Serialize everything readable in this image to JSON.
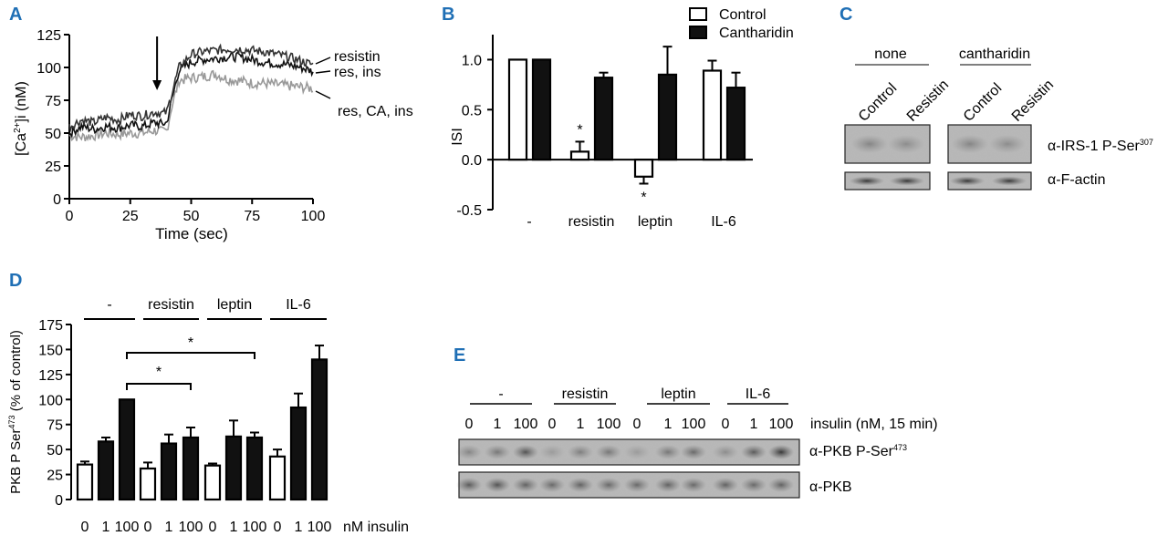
{
  "panels": {
    "A": {
      "letter": "A",
      "chart_data": {
        "type": "line",
        "xlabel": "Time (sec)",
        "ylabel": "[Ca2+]i (nM)",
        "xlim": [
          0,
          100
        ],
        "ylim": [
          0,
          125
        ],
        "xticks": [
          "0",
          "25",
          "50",
          "75",
          "100"
        ],
        "yticks": [
          "0",
          "25",
          "50",
          "75",
          "100",
          "125"
        ],
        "series": [
          {
            "name": "resistin",
            "color": "#333333",
            "x": [
              0,
              5,
              10,
              15,
              20,
              25,
              30,
              35,
              38,
              40,
              42,
              45,
              50,
              55,
              60,
              65,
              70,
              75,
              80,
              85,
              90,
              95,
              100
            ],
            "y": [
              55,
              60,
              58,
              62,
              60,
              64,
              63,
              66,
              65,
              66,
              80,
              100,
              110,
              112,
              113,
              114,
              114,
              113,
              112,
              110,
              108,
              105,
              102
            ]
          },
          {
            "name": "res, ins",
            "color": "#111111",
            "x": [
              0,
              5,
              10,
              15,
              20,
              25,
              30,
              35,
              38,
              40,
              42,
              45,
              50,
              55,
              60,
              65,
              70,
              75,
              80,
              85,
              90,
              95,
              100
            ],
            "y": [
              50,
              55,
              53,
              55,
              54,
              56,
              55,
              58,
              57,
              58,
              75,
              98,
              104,
              106,
              107,
              108,
              108,
              106,
              104,
              103,
              102,
              100,
              97
            ]
          },
          {
            "name": "res, CA, ins",
            "color": "#999999",
            "x": [
              0,
              5,
              10,
              15,
              20,
              25,
              30,
              35,
              38,
              40,
              42,
              45,
              50,
              55,
              60,
              65,
              70,
              75,
              80,
              85,
              90,
              95,
              100
            ],
            "y": [
              48,
              47,
              48,
              50,
              49,
              50,
              50,
              52,
              51,
              52,
              70,
              90,
              92,
              93,
              95,
              91,
              90,
              88,
              88,
              87,
              86,
              85,
              84
            ]
          }
        ],
        "annotation": "stimulus arrow",
        "arrow_x": 36
      },
      "labels": {
        "ylabel_base": "[Ca",
        "ylabel_sup": "2+",
        "ylabel_rest": "]i (nM)"
      }
    },
    "B": {
      "letter": "B",
      "chart_data": {
        "type": "bar",
        "ylabel": "ISI",
        "ylim": [
          -0.5,
          1.25
        ],
        "yticks": [
          "-0.5",
          "0.0",
          "0.5",
          "1.0"
        ],
        "categories": [
          "-",
          "resistin",
          "leptin",
          "IL-6"
        ],
        "series": [
          {
            "name": "Control",
            "fill": "#ffffff",
            "values": [
              1.0,
              0.08,
              -0.17,
              0.89
            ],
            "errors": [
              0,
              0.1,
              0.07,
              0.1
            ]
          },
          {
            "name": "Cantharidin",
            "fill": "#111111",
            "values": [
              1.0,
              0.82,
              0.85,
              0.72
            ],
            "errors": [
              0,
              0.05,
              0.28,
              0.15
            ]
          }
        ],
        "significance": [
          "",
          "*",
          "*",
          ""
        ],
        "legend_position": "top-right"
      }
    },
    "C": {
      "letter": "C",
      "groups": [
        "none",
        "cantharidin"
      ],
      "lanes": [
        "Control",
        "Resistin",
        "Control",
        "Resistin"
      ],
      "rows": [
        {
          "label_prefix": "α-IRS-1 P-Ser",
          "label_sup": "307"
        },
        {
          "label_prefix": "α-F-actin",
          "label_sup": ""
        }
      ]
    },
    "D": {
      "letter": "D",
      "groups": [
        "-",
        "resistin",
        "leptin",
        "IL-6"
      ],
      "chart_data": {
        "type": "bar",
        "ylabel": "PKB P Ser473 (% of control)",
        "ylim": [
          0,
          175
        ],
        "yticks": [
          "0",
          "25",
          "50",
          "75",
          "100",
          "125",
          "150",
          "175"
        ],
        "x_tick_labels": [
          "0",
          "1",
          "100",
          "0",
          "1",
          "100",
          "0",
          "1",
          "100",
          "0",
          "1",
          "100"
        ],
        "xlabel": "nM insulin",
        "bars": [
          {
            "group": "-",
            "insulin": "0",
            "value": 35,
            "error": 3,
            "fill": "#ffffff"
          },
          {
            "group": "-",
            "insulin": "1",
            "value": 58,
            "error": 4,
            "fill": "#111111"
          },
          {
            "group": "-",
            "insulin": "100",
            "value": 100,
            "error": 0,
            "fill": "#111111"
          },
          {
            "group": "resistin",
            "insulin": "0",
            "value": 31,
            "error": 6,
            "fill": "#ffffff"
          },
          {
            "group": "resistin",
            "insulin": "1",
            "value": 56,
            "error": 9,
            "fill": "#111111"
          },
          {
            "group": "resistin",
            "insulin": "100",
            "value": 62,
            "error": 10,
            "fill": "#111111"
          },
          {
            "group": "leptin",
            "insulin": "0",
            "value": 34,
            "error": 2,
            "fill": "#ffffff"
          },
          {
            "group": "leptin",
            "insulin": "1",
            "value": 63,
            "error": 16,
            "fill": "#111111"
          },
          {
            "group": "leptin",
            "insulin": "100",
            "value": 62,
            "error": 5,
            "fill": "#111111"
          },
          {
            "group": "IL-6",
            "insulin": "0",
            "value": 43,
            "error": 7,
            "fill": "#ffffff"
          },
          {
            "group": "IL-6",
            "insulin": "1",
            "value": 92,
            "error": 14,
            "fill": "#111111"
          },
          {
            "group": "IL-6",
            "insulin": "100",
            "value": 140,
            "error": 14,
            "fill": "#111111"
          }
        ],
        "significance_brackets": [
          {
            "from": "-/100",
            "to": "leptin/100",
            "label": "*"
          },
          {
            "from": "-/100",
            "to": "resistin/100",
            "label": "*"
          }
        ]
      },
      "labels": {
        "ylabel_a": "PKB P Ser",
        "ylabel_sup": "473",
        "ylabel_b": " (% of control)"
      }
    },
    "E": {
      "letter": "E",
      "groups": [
        "-",
        "resistin",
        "leptin",
        "IL-6"
      ],
      "lanes": [
        "0",
        "1",
        "100",
        "0",
        "1",
        "100",
        "0",
        "1",
        "100",
        "0",
        "1",
        "100"
      ],
      "insulin_label": "insulin (nM, 15 min)",
      "rows": [
        {
          "label_prefix": "α-PKB P-Ser",
          "label_sup": "473"
        },
        {
          "label_prefix": "α-PKB",
          "label_sup": ""
        }
      ]
    }
  }
}
